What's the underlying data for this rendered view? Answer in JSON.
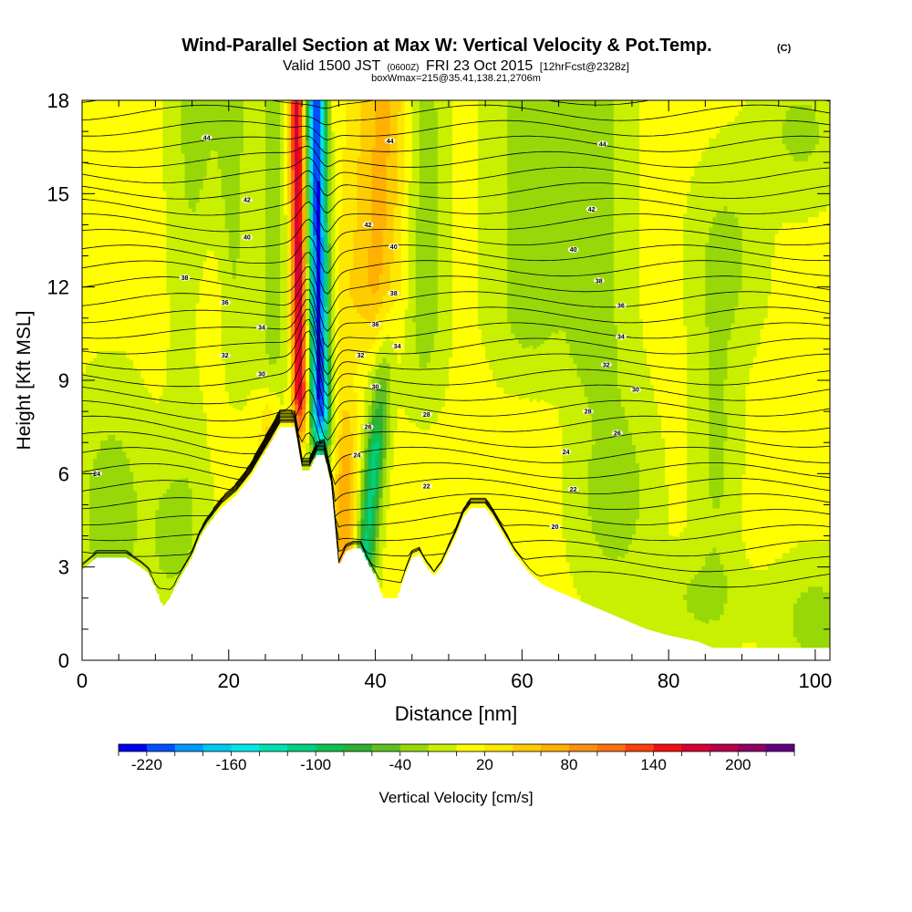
{
  "title": {
    "main": "Wind-Parallel Section at Max W: Vertical Velocity & Pot.Temp.",
    "copyright": "(C)",
    "valid_prefix": "Valid 1500 JST",
    "valid_utc": "(0600Z)",
    "valid_date": "FRI 23 Oct 2015",
    "forecast": "[12hrFcst@2328z]",
    "boxline": "boxWmax=215@35.41,138.21,2706m"
  },
  "chart_data": {
    "type": "heatmap",
    "xlabel": "Distance [nm]",
    "ylabel": "Height [Kft MSL]",
    "xlim": [
      0,
      102
    ],
    "ylim": [
      0,
      18
    ],
    "x_ticks": [
      0,
      20,
      40,
      60,
      80,
      100
    ],
    "y_ticks": [
      0,
      3,
      6,
      9,
      12,
      15,
      18
    ],
    "colorbar": {
      "label": "Vertical Velocity [cm/s]",
      "tick_labels": [
        "-220",
        "-160",
        "-100",
        "-40",
        "20",
        "80",
        "140",
        "200"
      ],
      "tick_values": [
        -220,
        -160,
        -100,
        -40,
        20,
        80,
        140,
        200
      ],
      "bins": [
        -240,
        -220,
        -200,
        -180,
        -160,
        -140,
        -120,
        -100,
        -80,
        -60,
        -40,
        -20,
        0,
        20,
        40,
        60,
        80,
        100,
        120,
        140,
        160,
        180,
        200,
        220,
        240
      ],
      "colors": [
        "#0000f0",
        "#0050ff",
        "#0098ff",
        "#00c8f0",
        "#00e8e8",
        "#00e0b0",
        "#00d080",
        "#10c050",
        "#30b030",
        "#60c020",
        "#98d808",
        "#c8f000",
        "#ffff00",
        "#ffe800",
        "#ffcc00",
        "#ffb000",
        "#ff9010",
        "#ff7010",
        "#ff4010",
        "#f01010",
        "#d80030",
        "#b80048",
        "#900060",
        "#600080"
      ]
    },
    "terrain_top_kft": [
      {
        "x": 0,
        "y": 2.9
      },
      {
        "x": 2,
        "y": 3.3
      },
      {
        "x": 6,
        "y": 3.3
      },
      {
        "x": 8,
        "y": 3.0
      },
      {
        "x": 9,
        "y": 2.8
      },
      {
        "x": 10,
        "y": 2.3
      },
      {
        "x": 11,
        "y": 1.7
      },
      {
        "x": 12,
        "y": 2.0
      },
      {
        "x": 13,
        "y": 2.5
      },
      {
        "x": 14,
        "y": 2.9
      },
      {
        "x": 15,
        "y": 3.3
      },
      {
        "x": 16,
        "y": 3.9
      },
      {
        "x": 17,
        "y": 4.3
      },
      {
        "x": 18,
        "y": 4.6
      },
      {
        "x": 19,
        "y": 4.9
      },
      {
        "x": 20,
        "y": 5.1
      },
      {
        "x": 21,
        "y": 5.3
      },
      {
        "x": 22,
        "y": 5.6
      },
      {
        "x": 23,
        "y": 5.9
      },
      {
        "x": 24,
        "y": 6.3
      },
      {
        "x": 25,
        "y": 6.7
      },
      {
        "x": 26,
        "y": 7.1
      },
      {
        "x": 27,
        "y": 7.5
      },
      {
        "x": 29,
        "y": 7.5
      },
      {
        "x": 30,
        "y": 6.1
      },
      {
        "x": 31,
        "y": 6.1
      },
      {
        "x": 32,
        "y": 6.6
      },
      {
        "x": 33,
        "y": 6.6
      },
      {
        "x": 34,
        "y": 5.6
      },
      {
        "x": 35,
        "y": 3.0
      },
      {
        "x": 36,
        "y": 3.5
      },
      {
        "x": 37,
        "y": 3.6
      },
      {
        "x": 38,
        "y": 3.6
      },
      {
        "x": 39,
        "y": 3.1
      },
      {
        "x": 40,
        "y": 2.7
      },
      {
        "x": 41,
        "y": 2.0
      },
      {
        "x": 43,
        "y": 2.0
      },
      {
        "x": 44,
        "y": 2.7
      },
      {
        "x": 45,
        "y": 3.3
      },
      {
        "x": 46,
        "y": 3.4
      },
      {
        "x": 47,
        "y": 3.0
      },
      {
        "x": 48,
        "y": 2.7
      },
      {
        "x": 49,
        "y": 3.0
      },
      {
        "x": 50,
        "y": 3.5
      },
      {
        "x": 51,
        "y": 4.0
      },
      {
        "x": 52,
        "y": 4.6
      },
      {
        "x": 53,
        "y": 4.9
      },
      {
        "x": 55,
        "y": 4.9
      },
      {
        "x": 56,
        "y": 4.6
      },
      {
        "x": 57,
        "y": 4.2
      },
      {
        "x": 58,
        "y": 3.8
      },
      {
        "x": 59,
        "y": 3.4
      },
      {
        "x": 60,
        "y": 3.1
      },
      {
        "x": 61,
        "y": 2.8
      },
      {
        "x": 62,
        "y": 2.6
      },
      {
        "x": 63,
        "y": 2.4
      },
      {
        "x": 65,
        "y": 2.2
      },
      {
        "x": 67,
        "y": 2.0
      },
      {
        "x": 69,
        "y": 1.8
      },
      {
        "x": 71,
        "y": 1.6
      },
      {
        "x": 73,
        "y": 1.4
      },
      {
        "x": 75,
        "y": 1.2
      },
      {
        "x": 77,
        "y": 1.0
      },
      {
        "x": 80,
        "y": 0.8
      },
      {
        "x": 84,
        "y": 0.6
      },
      {
        "x": 86,
        "y": 0.4
      },
      {
        "x": 102,
        "y": 0.4
      }
    ],
    "theta_contour_labels": [
      {
        "text": "44",
        "x": 17,
        "y": 16.8
      },
      {
        "text": "44",
        "x": 42,
        "y": 16.7
      },
      {
        "text": "44",
        "x": 71,
        "y": 16.6
      },
      {
        "text": "42",
        "x": 22.5,
        "y": 14.8
      },
      {
        "text": "42",
        "x": 39,
        "y": 14.0
      },
      {
        "text": "42",
        "x": 69.5,
        "y": 14.5
      },
      {
        "text": "40",
        "x": 22.5,
        "y": 13.6
      },
      {
        "text": "40",
        "x": 42.5,
        "y": 13.3
      },
      {
        "text": "40",
        "x": 67,
        "y": 13.2
      },
      {
        "text": "38",
        "x": 14,
        "y": 12.3
      },
      {
        "text": "38",
        "x": 42.5,
        "y": 11.8
      },
      {
        "text": "38",
        "x": 70.5,
        "y": 12.2
      },
      {
        "text": "36",
        "x": 19.5,
        "y": 11.5
      },
      {
        "text": "36",
        "x": 40,
        "y": 10.8
      },
      {
        "text": "36",
        "x": 73.5,
        "y": 11.4
      },
      {
        "text": "34",
        "x": 24.5,
        "y": 10.7
      },
      {
        "text": "34",
        "x": 43,
        "y": 10.1
      },
      {
        "text": "34",
        "x": 73.5,
        "y": 10.4
      },
      {
        "text": "32",
        "x": 19.5,
        "y": 9.8
      },
      {
        "text": "32",
        "x": 38,
        "y": 9.8
      },
      {
        "text": "32",
        "x": 71.5,
        "y": 9.5
      },
      {
        "text": "30",
        "x": 24.5,
        "y": 9.2
      },
      {
        "text": "30",
        "x": 40,
        "y": 8.8
      },
      {
        "text": "30",
        "x": 75.5,
        "y": 8.7
      },
      {
        "text": "28",
        "x": 47,
        "y": 7.9
      },
      {
        "text": "28",
        "x": 69,
        "y": 8.0
      },
      {
        "text": "26",
        "x": 39,
        "y": 7.5
      },
      {
        "text": "26",
        "x": 73,
        "y": 7.3
      },
      {
        "text": "24",
        "x": 2,
        "y": 6.0
      },
      {
        "text": "24",
        "x": 37.5,
        "y": 6.6
      },
      {
        "text": "24",
        "x": 66,
        "y": 6.7
      },
      {
        "text": "22",
        "x": 47,
        "y": 5.6
      },
      {
        "text": "22",
        "x": 67,
        "y": 5.5
      },
      {
        "text": "20",
        "x": 64.5,
        "y": 4.3
      }
    ]
  }
}
